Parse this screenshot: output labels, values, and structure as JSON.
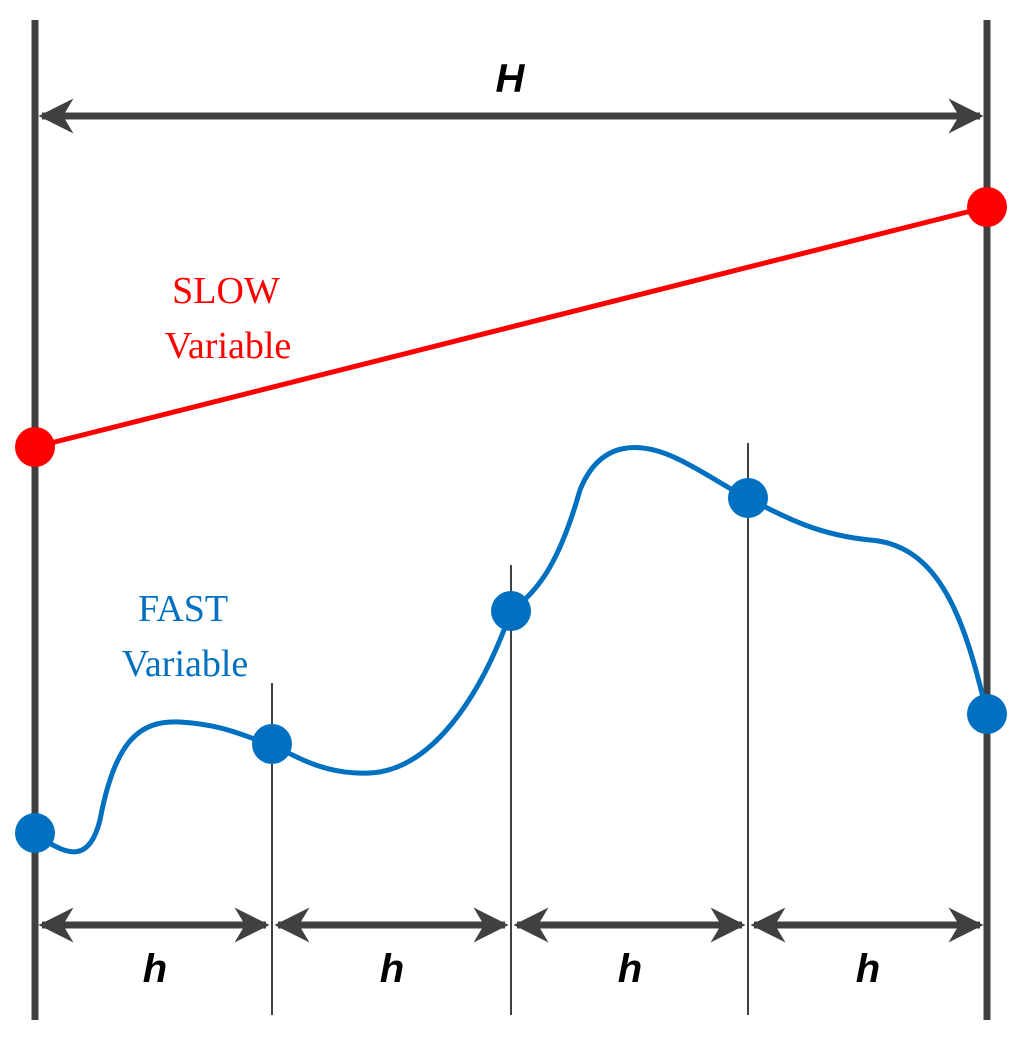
{
  "horizon_label": "H",
  "slow_label": [
    "SLOW",
    "Variable"
  ],
  "fast_label": [
    "FAST",
    "Variable"
  ],
  "step_labels": [
    "h",
    "h",
    "h",
    "h"
  ]
}
